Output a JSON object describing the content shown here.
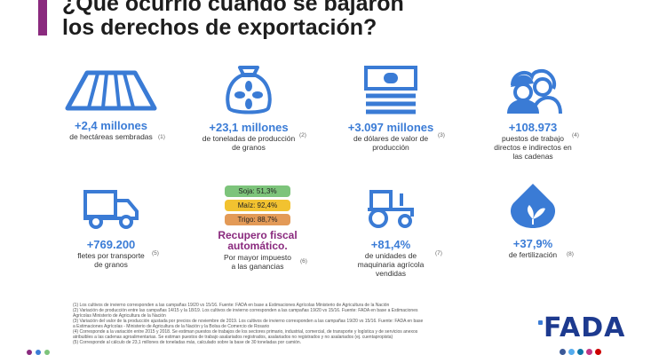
{
  "title": {
    "line1": "¿Qué ocurrió cuando se bajaron",
    "line2": "los derechos de exportación?"
  },
  "stats": {
    "hectares": {
      "value": "+2,4 millones",
      "line1": "de hectáreas sembradas",
      "ref": "(1)",
      "icon": "field-rows-icon"
    },
    "tons": {
      "value": "+23,1 millones",
      "line1": "de toneladas de producción",
      "line2": "de granos",
      "ref": "(2)",
      "icon": "grain-sack-icon"
    },
    "dollars": {
      "value": "+3.097 millones",
      "line1": "de dólares de valor de",
      "line2": "producción",
      "ref": "(3)",
      "icon": "banknotes-icon"
    },
    "jobs": {
      "value": "+108.973",
      "line1": "puestos de trabajo",
      "line2": "directos e indirectos en",
      "line3": "las cadenas",
      "ref": "(4)",
      "icon": "workers-icon"
    },
    "freight": {
      "value": "+769.200",
      "line1": "fletes por transporte",
      "line2": "de granos",
      "ref": "(5)",
      "icon": "truck-icon"
    },
    "fiscal": {
      "pill_soja": "Soja: 51,3%",
      "pill_maiz": "Maíz: 92,4%",
      "pill_trigo": "Trigo: 88,7%",
      "title1": "Recupero fiscal",
      "title2": "automático.",
      "line1": "Por mayor impuesto",
      "line2": "a las ganancias",
      "ref": "(6)"
    },
    "machinery": {
      "value": "+81,4%",
      "line1": "de unidades de",
      "line2": "maquinaria agrícola",
      "line3": "vendidas",
      "ref": "(7)",
      "icon": "tractor-icon"
    },
    "fertilizer": {
      "value": "+37,9%",
      "line1": "de fertilización",
      "ref": "(8)",
      "icon": "fertilizer-drop-icon"
    }
  },
  "colors": {
    "accent_purple": "#8a2a7e",
    "value_blue": "#3b7cd6",
    "icon_blue": "#3a7bd5",
    "pill_soja": "#7dc47b",
    "pill_maiz": "#f2c230",
    "pill_trigo": "#e39a57"
  },
  "footnotes": [
    "(1) Los cultivos de invierno corresponden a las campañas 19/20 vs 15/16. Fuente: FADA en base a Estimaciones Agrícolas Ministerio de Agricultura de la Nación",
    "(2) Variación de producción entre las campañas 14/15 y la 18/19. Los cultivos de invierno corresponden a las campañas 19/20 vs 15/16. Fuente: FADA en base a Estimaciones",
    "Agrícolas Ministerio de Agricultura de la Nación",
    "(3) Variación del valor de la producción ajustada por precios de noviembre de 2019. Los cultivos de invierno corresponden a las campañas 19/20 vs 15/16. Fuente: FADA en base",
    "a Estimaciones Agrícolas - Ministerio de Agricultura de la Nación y la Bolsa de Comercio de Rosario",
    "(4) Corresponde a la variación entre 2015 y 2018. Se estiman puestos de trabajos de los sectores primario, industrial, comercial, de transporte y logística y de servicios anexos",
    "atribuibles a las cadenas agroalimentarias. Se estiman puestos de trabajo asalariados registrados, asalariados no registrados y no asalariados (ej. cuentapropista)",
    "(5) Corresponde al cálculo de 23,1 millones de toneladas más, calculado sobre la base de 30 toneladas por camión."
  ],
  "logo": {
    "text": "FADA"
  }
}
